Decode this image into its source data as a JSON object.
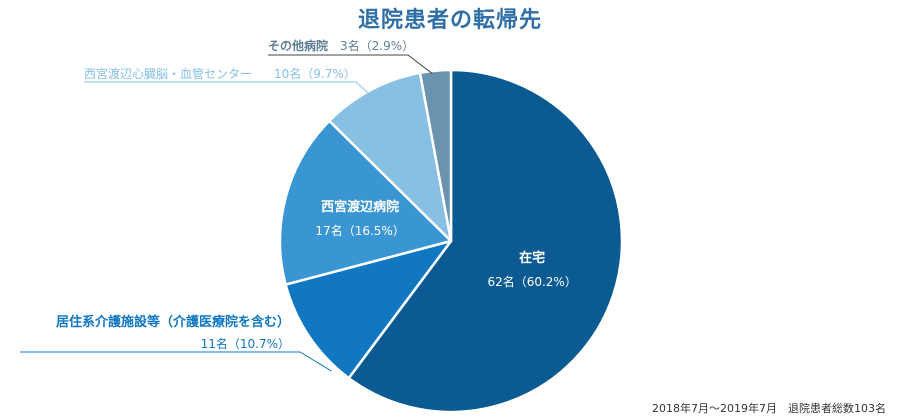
{
  "chart_data": {
    "type": "pie",
    "title": "退院患者の転帰先",
    "start_angle_deg": 0,
    "direction": "clockwise",
    "slices": [
      {
        "name": "在宅",
        "count_label": "62名（60.2%）",
        "count": 62,
        "percent": 60.2,
        "color": "#0b5a92",
        "label_style": "inside",
        "name_color": "#ffffff",
        "count_color": "#ffffff"
      },
      {
        "name": "居住系介護施設等（介護医療院を含む）",
        "count_label": "11名（10.7%）",
        "count": 11,
        "percent": 10.7,
        "color": "#1177c0",
        "label_style": "outside-bottom-left",
        "name_color": "#1177c0",
        "count_color": "#1177c0"
      },
      {
        "name": "西宮渡辺病院",
        "count_label": "17名（16.5%）",
        "count": 17,
        "percent": 16.5,
        "color": "#3a96d2",
        "label_style": "inside",
        "name_color": "#ffffff",
        "count_color": "#ffffff"
      },
      {
        "name": "西宮渡辺心臓脳・血管センター",
        "count_label": "10名（9.7%）",
        "count": 10,
        "percent": 9.7,
        "color": "#88c0e3",
        "label_style": "outside-top-left",
        "name_color": "#88c0e3",
        "count_color": "#88c0e3"
      },
      {
        "name": "その他病院",
        "count_label": "3名（2.9%）",
        "count": 3,
        "percent": 2.9,
        "color": "#6a93ad",
        "label_style": "outside-top",
        "name_color": "#5d7e94",
        "count_color": "#5d7e94"
      }
    ],
    "footnote": "2018年7月～2019年7月　退院患者総数103名"
  }
}
